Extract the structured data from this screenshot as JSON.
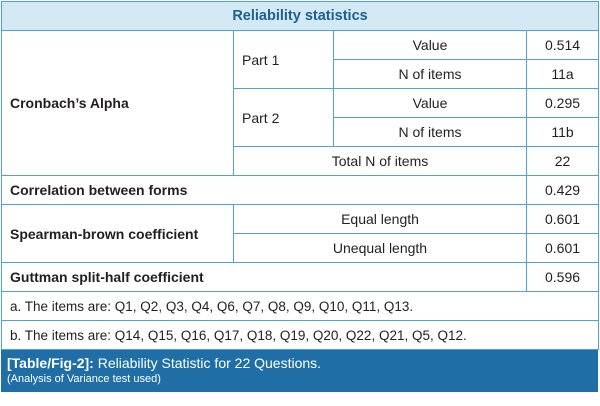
{
  "table": {
    "title": "Reliability statistics",
    "cronbach": {
      "label": "Cronbach’s Alpha",
      "part1": {
        "label": "Part 1",
        "value_label": "Value",
        "value": "0.514",
        "n_label": "N of items",
        "n": "11a"
      },
      "part2": {
        "label": "Part 2",
        "value_label": "Value",
        "value": "0.295",
        "n_label": "N of items",
        "n": "11b"
      },
      "total_label": "Total N of items",
      "total": "22"
    },
    "correlation": {
      "label": "Correlation between forms",
      "value": "0.429"
    },
    "spearman": {
      "label": "Spearman-brown coefficient",
      "equal_label": "Equal length",
      "equal_value": "0.601",
      "unequal_label": "Unequal length",
      "unequal_value": "0.601"
    },
    "guttman": {
      "label": "Guttman split-half coefficient",
      "value": "0.596"
    },
    "note_a": "a. The items are: Q1, Q2, Q3, Q4, Q6, Q7, Q8, Q9, Q10, Q11, Q13.",
    "note_b": "b. The items are: Q14, Q15, Q16, Q17, Q18, Q19, Q20, Q22, Q21, Q5, Q12."
  },
  "caption": {
    "tag": "[Table/Fig-2]:",
    "text": " Reliability Statistic for 22 Questions.",
    "subtext": "(Analysis of Variance test used)"
  },
  "colors": {
    "border": "#4fa3ce",
    "header_bg": "#d3e9f5",
    "header_text": "#1f5f8f",
    "caption_bg": "#1f6fa6"
  }
}
